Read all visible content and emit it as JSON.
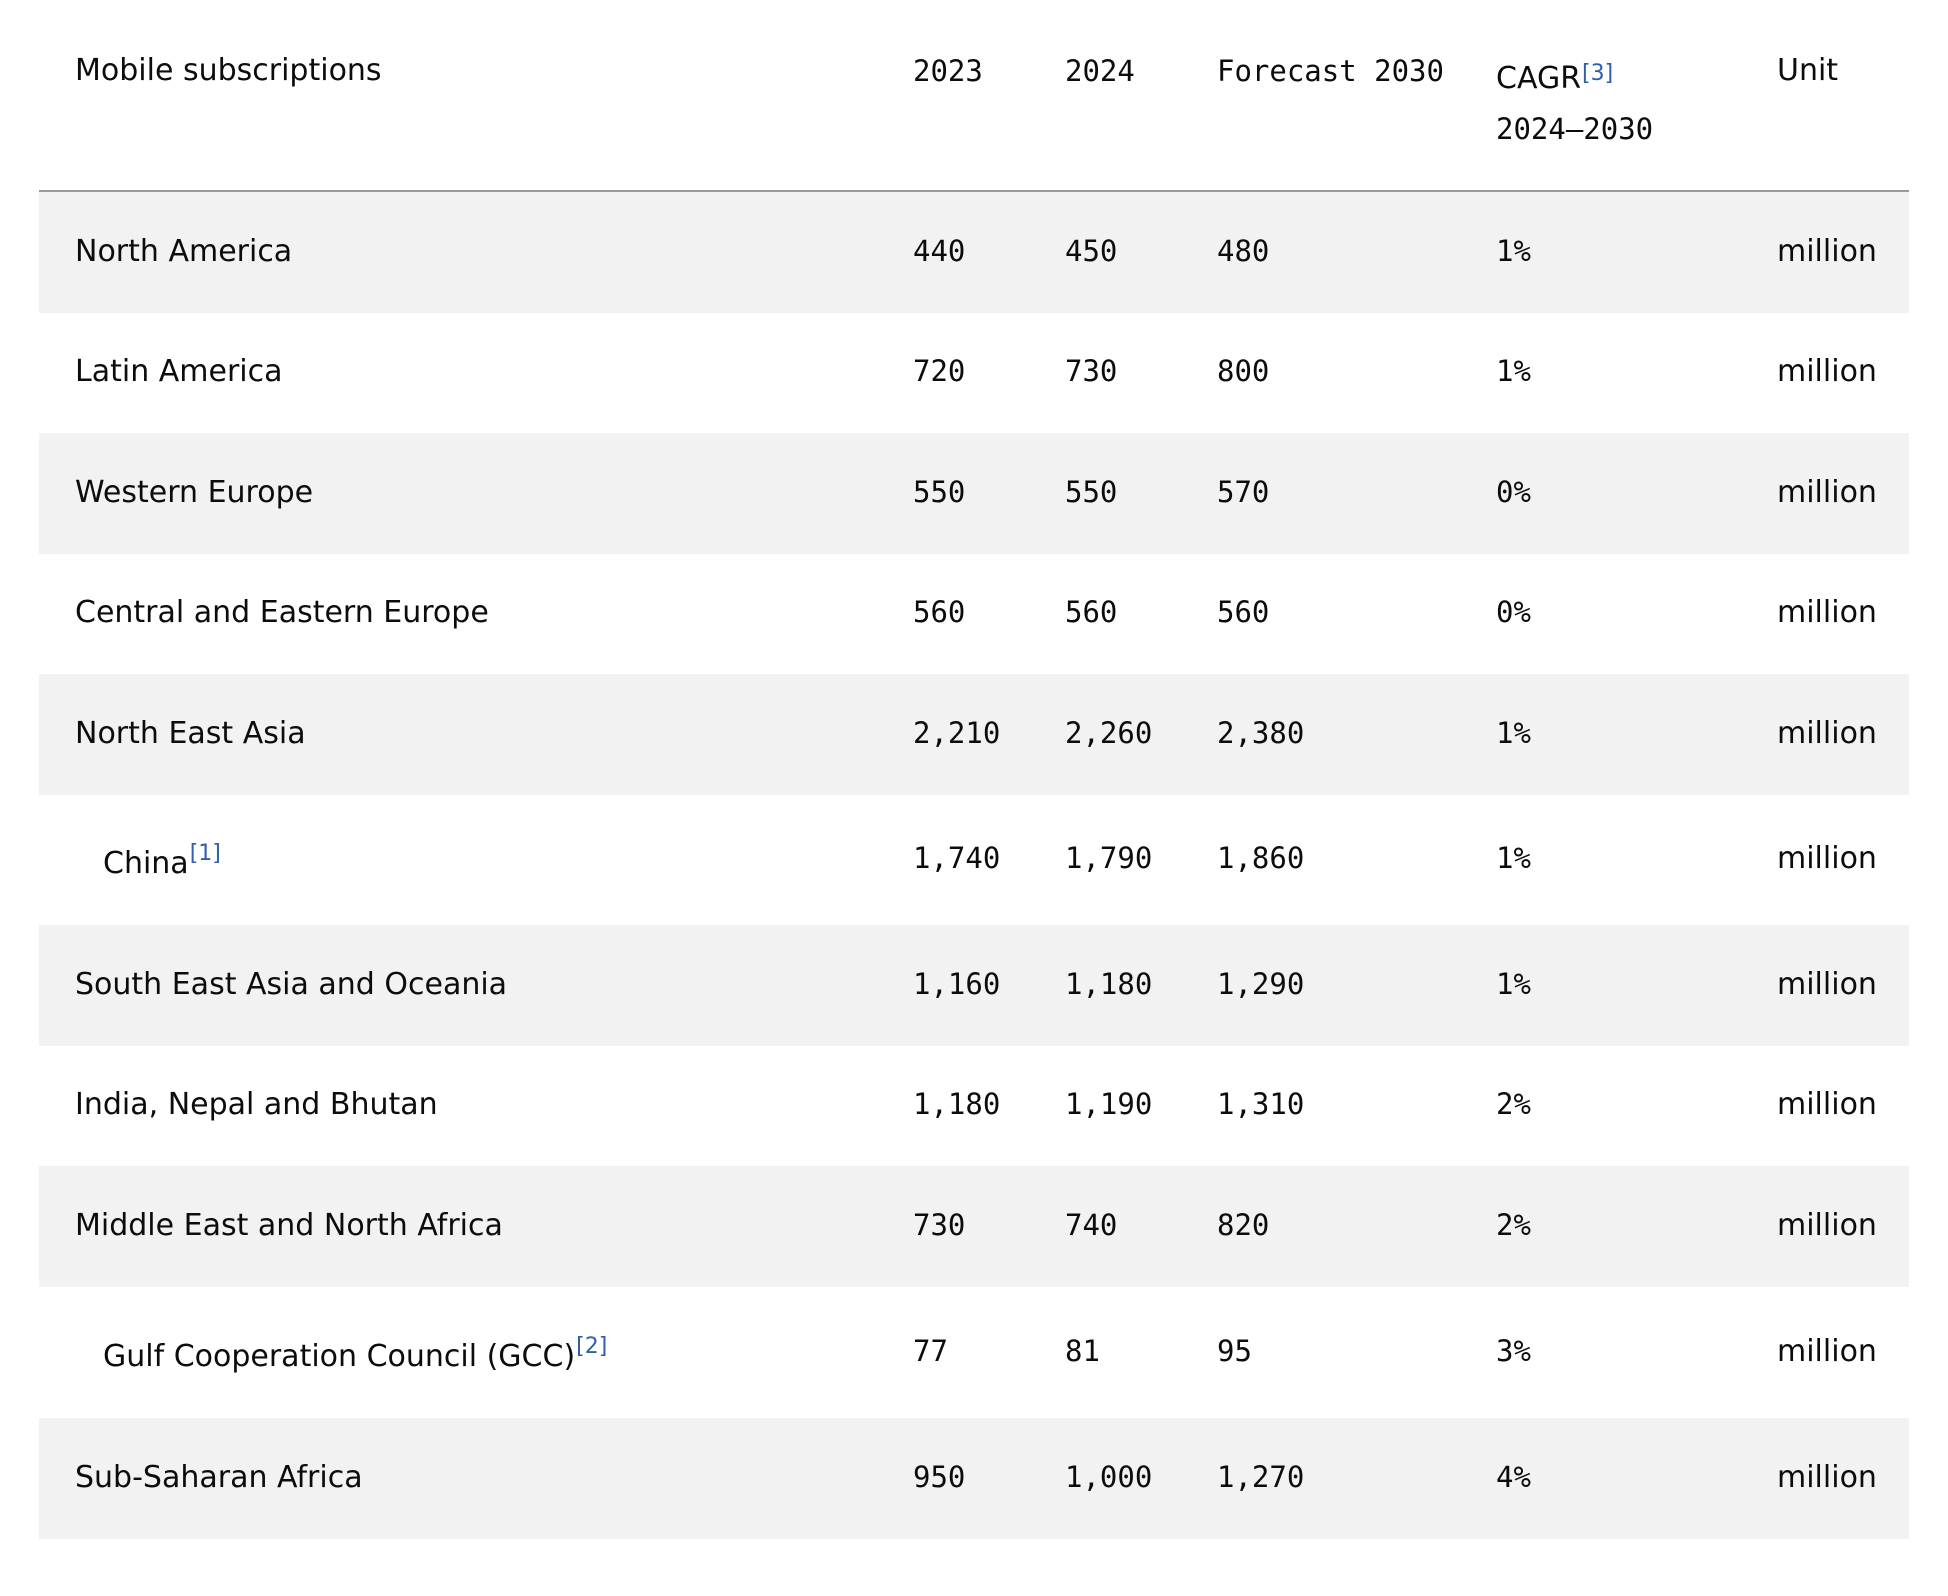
{
  "columns": {
    "region": "Mobile subscriptions",
    "y2023": "2023",
    "y2024": "2024",
    "y2030": "Forecast 2030",
    "cagr": "CAGR",
    "cagr_footnote": "[3]",
    "cagr_period": "2024–2030",
    "unit": "Unit"
  },
  "rows": [
    {
      "region": "North America",
      "footnote": "",
      "y2023": "440",
      "y2024": "450",
      "y2030": "480",
      "cagr": "1%",
      "unit": "million"
    },
    {
      "region": "Latin America",
      "footnote": "",
      "y2023": "720",
      "y2024": "730",
      "y2030": "800",
      "cagr": "1%",
      "unit": "million"
    },
    {
      "region": "Western Europe",
      "footnote": "",
      "y2023": "550",
      "y2024": "550",
      "y2030": "570",
      "cagr": "0%",
      "unit": "million"
    },
    {
      "region": "Central and Eastern Europe",
      "footnote": "",
      "y2023": "560",
      "y2024": "560",
      "y2030": "560",
      "cagr": "0%",
      "unit": "million"
    },
    {
      "region": "North East Asia",
      "footnote": "",
      "y2023": "2,210",
      "y2024": "2,260",
      "y2030": "2,380",
      "cagr": "1%",
      "unit": "million"
    },
    {
      "region": "China",
      "footnote": "[1]",
      "y2023": "1,740",
      "y2024": "1,790",
      "y2030": "1,860",
      "cagr": "1%",
      "unit": "million"
    },
    {
      "region": "South East Asia and Oceania",
      "footnote": "",
      "y2023": "1,160",
      "y2024": "1,180",
      "y2030": "1,290",
      "cagr": "1%",
      "unit": "million"
    },
    {
      "region": "India, Nepal and Bhutan",
      "footnote": "",
      "y2023": "1,180",
      "y2024": "1,190",
      "y2030": "1,310",
      "cagr": "2%",
      "unit": "million"
    },
    {
      "region": "Middle East and North Africa",
      "footnote": "",
      "y2023": "730",
      "y2024": "740",
      "y2030": "820",
      "cagr": "2%",
      "unit": "million"
    },
    {
      "region": "Gulf Cooperation Council (GCC)",
      "footnote": "[2]",
      "y2023": "77",
      "y2024": "81",
      "y2030": "95",
      "cagr": "3%",
      "unit": "million"
    },
    {
      "region": "Sub-Saharan Africa",
      "footnote": "",
      "y2023": "950",
      "y2024": "1,000",
      "y2030": "1,270",
      "cagr": "4%",
      "unit": "million"
    }
  ]
}
